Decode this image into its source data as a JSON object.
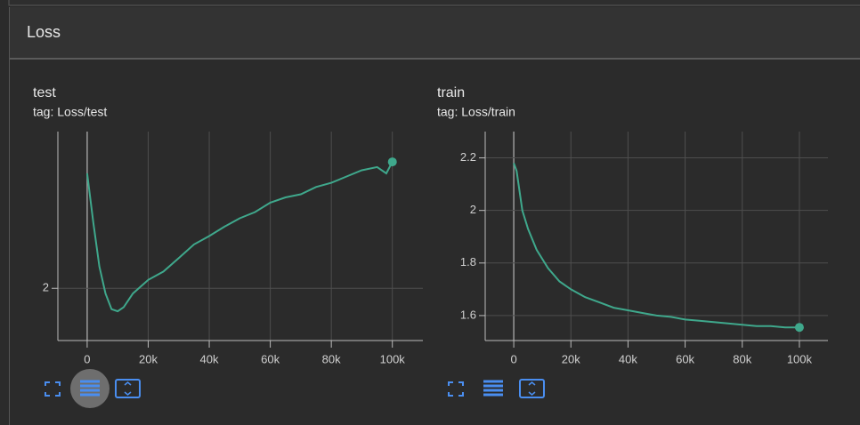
{
  "section": {
    "title": "Loss"
  },
  "chart_data": [
    {
      "type": "line",
      "title": "test",
      "subtitle": "tag: Loss/test",
      "color": "#3fa88c",
      "grid": true,
      "x": [
        0,
        2000,
        4000,
        6000,
        8000,
        10000,
        12000,
        15000,
        20000,
        25000,
        30000,
        35000,
        40000,
        45000,
        50000,
        55000,
        60000,
        65000,
        70000,
        75000,
        80000,
        85000,
        90000,
        95000,
        98000,
        100000
      ],
      "values": [
        2.11,
        2.063,
        2.021,
        1.995,
        1.98,
        1.978,
        1.982,
        1.995,
        2.008,
        2.016,
        2.029,
        2.042,
        2.05,
        2.059,
        2.067,
        2.073,
        2.082,
        2.087,
        2.09,
        2.097,
        2.101,
        2.107,
        2.113,
        2.116,
        2.11,
        2.121
      ],
      "xlim": [
        -9600,
        110000
      ],
      "ylim": [
        1.95,
        2.15
      ],
      "xticks": [
        0,
        {
          "value": 20000,
          "label": "20k"
        },
        {
          "value": 40000,
          "label": "40k"
        },
        {
          "value": 60000,
          "label": "60k"
        },
        {
          "value": 80000,
          "label": "80k"
        },
        {
          "value": 100000,
          "label": "100k"
        }
      ],
      "yticks": [
        2
      ]
    },
    {
      "type": "line",
      "title": "train",
      "subtitle": "tag: Loss/train",
      "color": "#3fa88c",
      "grid": true,
      "x": [
        0,
        1000,
        3000,
        5000,
        8000,
        12000,
        16000,
        20000,
        25000,
        30000,
        35000,
        40000,
        45000,
        50000,
        55000,
        60000,
        65000,
        70000,
        75000,
        80000,
        85000,
        90000,
        95000,
        100000
      ],
      "values": [
        2.18,
        2.15,
        2.0,
        1.93,
        1.85,
        1.78,
        1.73,
        1.7,
        1.67,
        1.65,
        1.63,
        1.62,
        1.61,
        1.6,
        1.595,
        1.585,
        1.58,
        1.575,
        1.57,
        1.565,
        1.56,
        1.56,
        1.555,
        1.555
      ],
      "xlim": [
        -10000,
        110000
      ],
      "ylim": [
        1.505,
        2.3
      ],
      "xticks": [
        0,
        {
          "value": 20000,
          "label": "20k"
        },
        {
          "value": 40000,
          "label": "40k"
        },
        {
          "value": 60000,
          "label": "60k"
        },
        {
          "value": 80000,
          "label": "80k"
        },
        {
          "value": 100000,
          "label": "100k"
        }
      ],
      "yticks": [
        1.6,
        1.8,
        2,
        2.2
      ]
    }
  ]
}
